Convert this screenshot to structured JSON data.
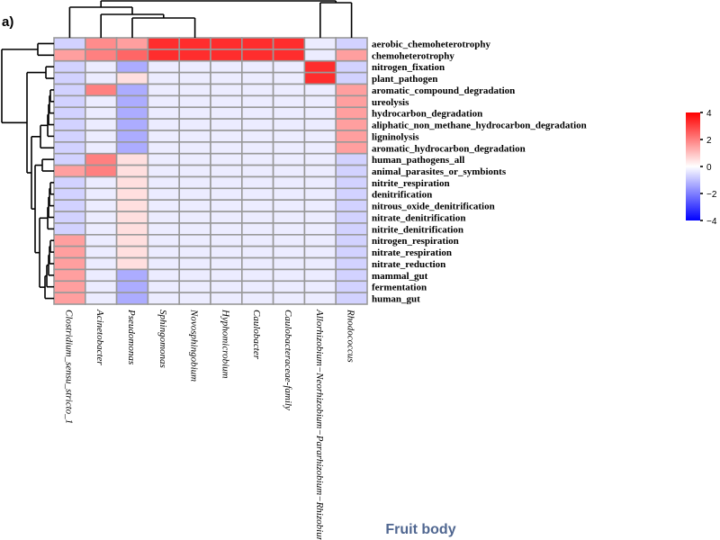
{
  "panel_label": "a)",
  "footer_title": "Fruit body",
  "chart_data": {
    "type": "heatmap",
    "columns": [
      "Clostridium_sensu_stricto_1",
      "Acinetobacter",
      "Pseudomonas",
      "Sphingomonas",
      "Novosphingobium",
      "Hyphomicrobium",
      "Caulobacter",
      "Caulobacteraceae-family",
      "Allorhizobium−Neorhizobium−Pararhizobium−Rhizobium",
      "Rhodococcus"
    ],
    "rows": [
      "aerobic_chemoheterotrophy",
      "chemoheterotrophy",
      "nitrogen_fixation",
      "plant_pathogen",
      "aromatic_compound_degradation",
      "ureolysis",
      "hydrocarbon_degradation",
      "aliphatic_non_methane_hydrocarbon_degradation",
      "ligninolysis",
      "aromatic_hydrocarbon_degradation",
      "human_pathogens_all",
      "animal_parasites_or_symbionts",
      "nitrite_respiration",
      "denitrification",
      "nitrous_oxide_denitrification",
      "nitrate_denitrification",
      "nitrite_denitrification",
      "nitrogen_respiration",
      "nitrate_respiration",
      "nitrate_reduction",
      "mammal_gut",
      "fermentation",
      "human_gut"
    ],
    "values": [
      [
        -0.7,
        1.8,
        1.5,
        3.3,
        3.3,
        3.3,
        3.3,
        3.3,
        -0.3,
        -0.7
      ],
      [
        1.5,
        2.0,
        2.4,
        3.3,
        3.3,
        3.3,
        3.3,
        3.3,
        -0.3,
        1.5
      ],
      [
        -0.7,
        -0.3,
        -1.3,
        -0.3,
        -0.3,
        -0.3,
        -0.3,
        -0.3,
        3.3,
        -0.7
      ],
      [
        -0.7,
        -0.3,
        0.5,
        -0.3,
        -0.3,
        -0.3,
        -0.3,
        -0.3,
        3.3,
        -0.7
      ],
      [
        -0.7,
        2.0,
        -1.3,
        -0.3,
        -0.3,
        -0.3,
        -0.3,
        -0.3,
        -0.3,
        1.5
      ],
      [
        -0.7,
        -0.3,
        -1.3,
        -0.3,
        -0.3,
        -0.3,
        -0.3,
        -0.3,
        -0.3,
        1.5
      ],
      [
        -0.7,
        -0.3,
        -1.3,
        -0.3,
        -0.3,
        -0.3,
        -0.3,
        -0.3,
        -0.3,
        1.5
      ],
      [
        -0.7,
        -0.3,
        -1.3,
        -0.3,
        -0.3,
        -0.3,
        -0.3,
        -0.3,
        -0.3,
        1.5
      ],
      [
        -0.7,
        -0.3,
        -1.3,
        -0.3,
        -0.3,
        -0.3,
        -0.3,
        -0.3,
        -0.3,
        1.5
      ],
      [
        -0.7,
        -0.3,
        -1.3,
        -0.3,
        -0.3,
        -0.3,
        -0.3,
        -0.3,
        -0.3,
        1.5
      ],
      [
        -0.7,
        2.0,
        0.5,
        -0.3,
        -0.3,
        -0.3,
        -0.3,
        -0.3,
        -0.3,
        -0.7
      ],
      [
        1.5,
        2.0,
        0.5,
        -0.3,
        -0.3,
        -0.3,
        -0.3,
        -0.3,
        -0.3,
        -0.7
      ],
      [
        -0.7,
        -0.3,
        0.5,
        -0.3,
        -0.3,
        -0.3,
        -0.3,
        -0.3,
        -0.3,
        -0.7
      ],
      [
        -0.7,
        -0.3,
        0.5,
        -0.3,
        -0.3,
        -0.3,
        -0.3,
        -0.3,
        -0.3,
        -0.7
      ],
      [
        -0.7,
        -0.3,
        0.5,
        -0.3,
        -0.3,
        -0.3,
        -0.3,
        -0.3,
        -0.3,
        -0.7
      ],
      [
        -0.7,
        -0.3,
        0.5,
        -0.3,
        -0.3,
        -0.3,
        -0.3,
        -0.3,
        -0.3,
        -0.7
      ],
      [
        -0.7,
        -0.3,
        0.5,
        -0.3,
        -0.3,
        -0.3,
        -0.3,
        -0.3,
        -0.3,
        -0.7
      ],
      [
        1.5,
        -0.3,
        0.5,
        -0.3,
        -0.3,
        -0.3,
        -0.3,
        -0.3,
        -0.3,
        -0.7
      ],
      [
        1.5,
        -0.3,
        0.5,
        -0.3,
        -0.3,
        -0.3,
        -0.3,
        -0.3,
        -0.3,
        -0.7
      ],
      [
        1.5,
        -0.3,
        0.5,
        -0.3,
        -0.3,
        -0.3,
        -0.3,
        -0.3,
        -0.3,
        -0.7
      ],
      [
        1.5,
        -0.3,
        -1.3,
        -0.3,
        -0.3,
        -0.3,
        -0.3,
        -0.3,
        -0.3,
        -0.7
      ],
      [
        1.5,
        -0.3,
        -1.3,
        -0.3,
        -0.3,
        -0.3,
        -0.3,
        -0.3,
        -0.3,
        -0.7
      ],
      [
        1.5,
        -0.3,
        -1.3,
        -0.3,
        -0.3,
        -0.3,
        -0.3,
        -0.3,
        -0.3,
        -0.7
      ]
    ],
    "color_scale": {
      "min": -4,
      "max": 4,
      "low": "#0000ff",
      "mid": "#ffffff",
      "high": "#ff0000",
      "ticks": [
        4,
        2,
        0,
        -2,
        -4
      ]
    },
    "cell_border_color": "#999999",
    "row_dendrogram": true,
    "column_dendrogram": true,
    "legend_placement": "right"
  }
}
